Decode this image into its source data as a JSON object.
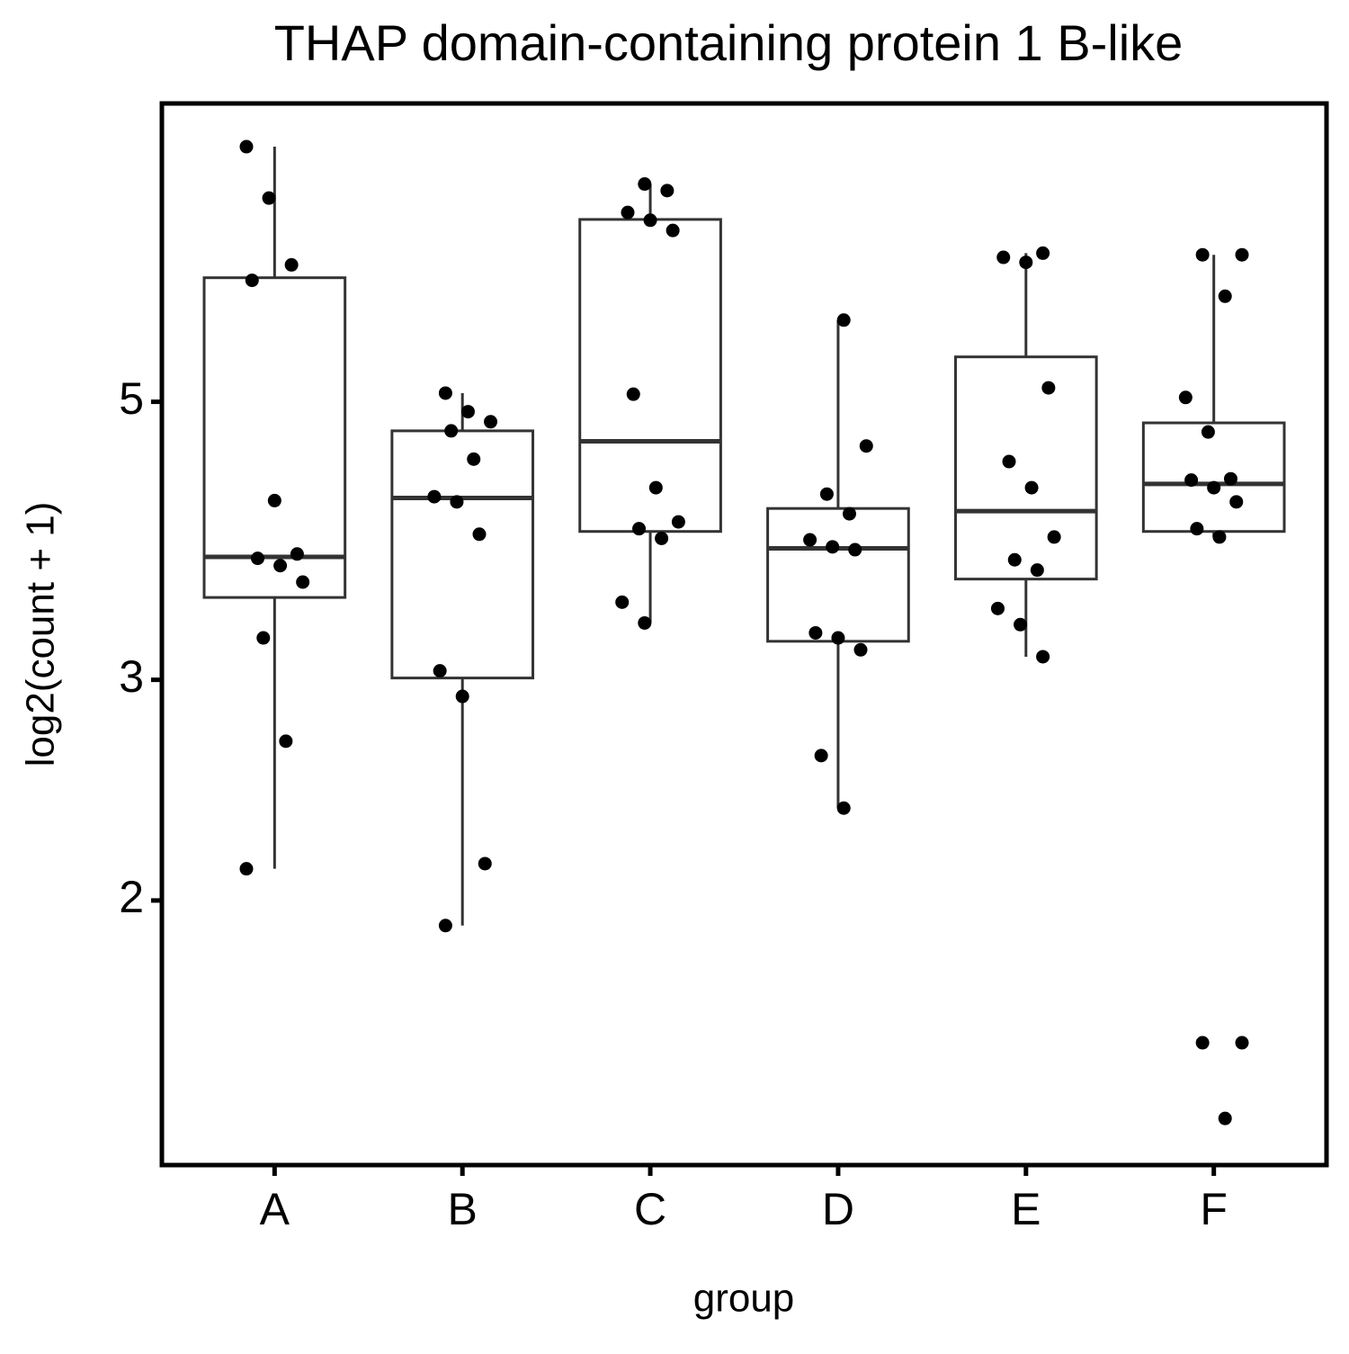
{
  "chart_data": {
    "type": "box",
    "title": "THAP domain-containing protein 1 B-like",
    "x_label": "group",
    "y_label": "log2(count + 1)",
    "y_scale": "log2",
    "ylim": [
      1.23,
      8.65
    ],
    "yticks": [
      2,
      3,
      5
    ],
    "box_color": "#333333",
    "point_color": "#000000",
    "groups": [
      {
        "name": "A",
        "whisker_low": 2.12,
        "q1": 3.49,
        "median": 3.76,
        "q3": 6.28,
        "whisker_high": 7.99,
        "points": [
          7.99,
          7.27,
          6.43,
          6.25,
          4.17,
          3.78,
          3.75,
          3.7,
          3.59,
          3.24,
          2.68,
          2.12
        ]
      },
      {
        "name": "B",
        "whisker_low": 1.91,
        "q1": 3.01,
        "median": 4.19,
        "q3": 4.74,
        "whisker_high": 5.08,
        "points": [
          5.08,
          4.91,
          4.82,
          4.74,
          4.5,
          4.2,
          4.16,
          3.92,
          3.05,
          2.91,
          2.14,
          1.91
        ]
      },
      {
        "name": "C",
        "whisker_low": 3.33,
        "q1": 3.94,
        "median": 4.65,
        "q3": 6.99,
        "whisker_high": 7.46,
        "points": [
          7.46,
          7.37,
          7.08,
          6.98,
          6.85,
          5.07,
          4.27,
          4.01,
          3.96,
          3.89,
          3.46,
          3.33
        ]
      },
      {
        "name": "D",
        "whisker_low": 2.37,
        "q1": 3.22,
        "median": 3.82,
        "q3": 4.11,
        "whisker_high": 5.81,
        "points": [
          5.81,
          4.61,
          4.22,
          4.07,
          3.88,
          3.83,
          3.81,
          3.27,
          3.24,
          3.17,
          2.61,
          2.37
        ]
      },
      {
        "name": "E",
        "whisker_low": 3.13,
        "q1": 3.61,
        "median": 4.09,
        "q3": 5.43,
        "whisker_high": 6.57,
        "points": [
          6.57,
          6.52,
          6.46,
          5.13,
          4.48,
          4.27,
          3.9,
          3.74,
          3.67,
          3.42,
          3.32,
          3.13
        ]
      },
      {
        "name": "F",
        "whisker_low": 3.9,
        "q1": 3.94,
        "median": 4.3,
        "q3": 4.81,
        "whisker_high": 6.55,
        "points": [
          6.55,
          6.55,
          6.07,
          5.04,
          4.73,
          4.34,
          4.33,
          4.27,
          4.16,
          3.96,
          3.9,
          1.54,
          1.54,
          1.34
        ]
      }
    ]
  }
}
